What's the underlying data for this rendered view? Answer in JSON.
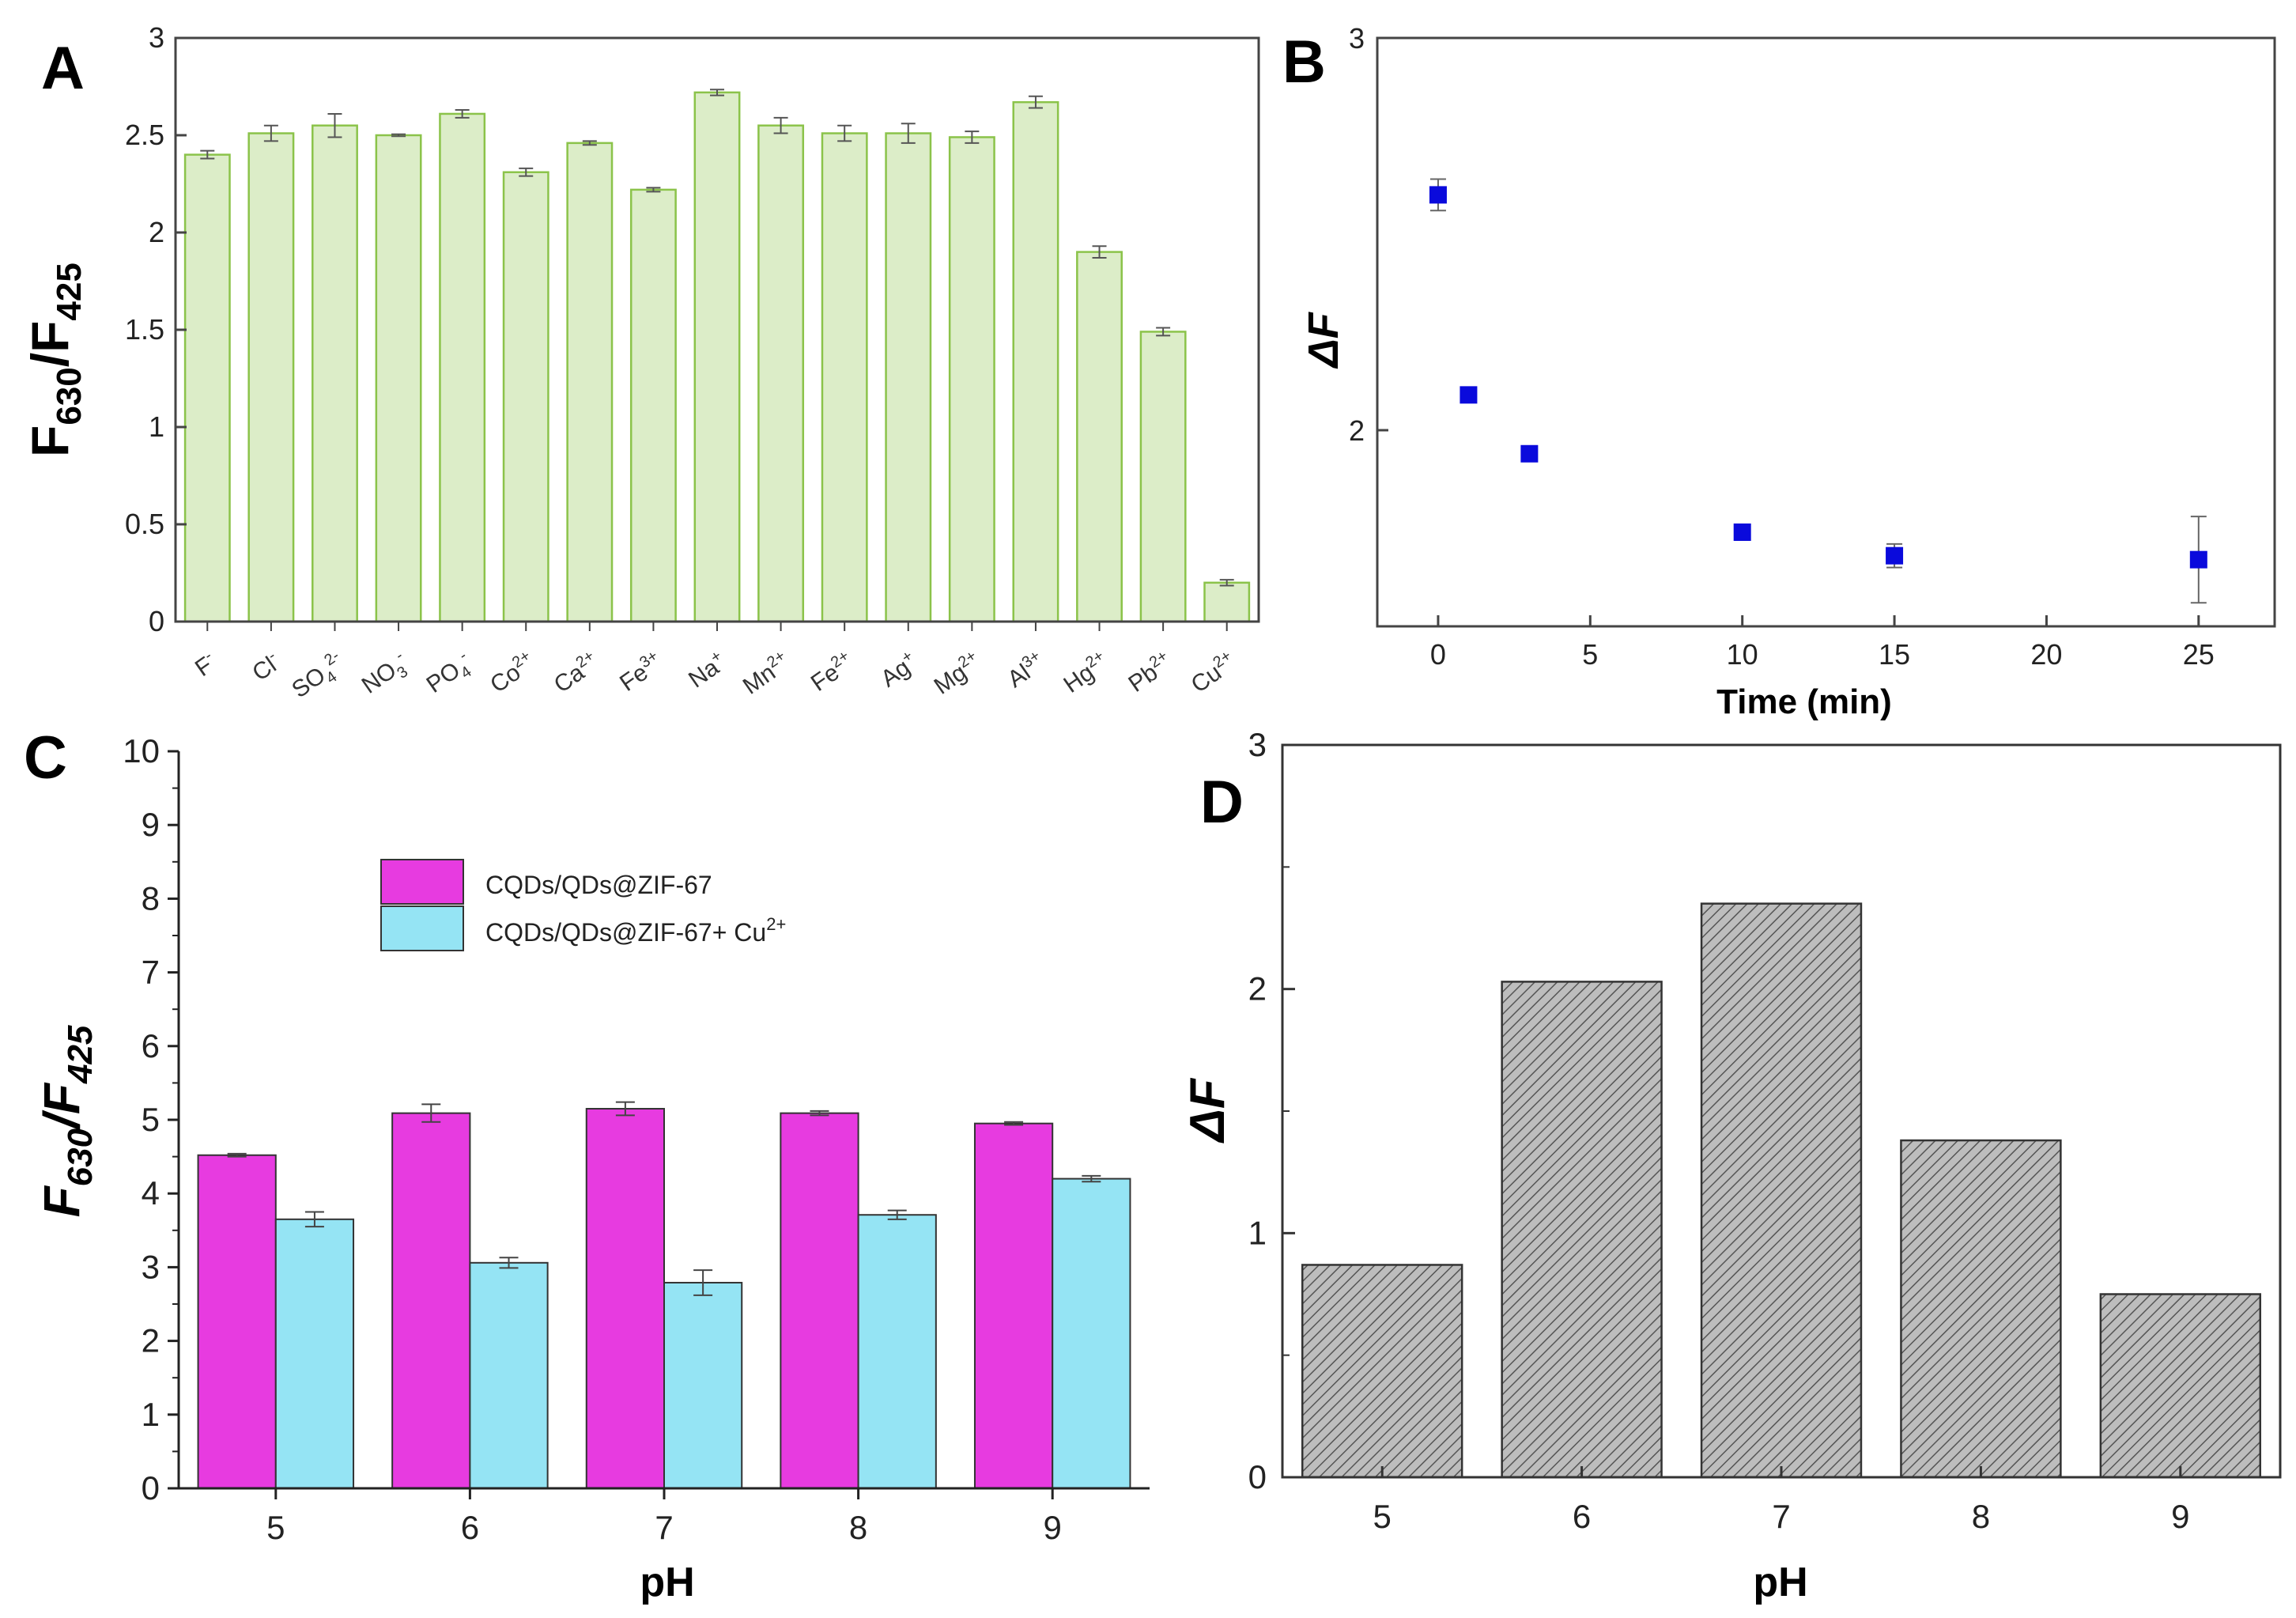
{
  "chart_data": [
    {
      "panel": "A",
      "type": "bar",
      "ylabel": "F630/F425",
      "ylim": [
        0,
        3
      ],
      "yticks": [
        "0",
        "0.5",
        "1",
        "1.5",
        "2",
        "2.5",
        "3"
      ],
      "categories": [
        {
          "base": "F",
          "sub": "",
          "sup": "-"
        },
        {
          "base": "Cl",
          "sub": "",
          "sup": "-"
        },
        {
          "base": "SO",
          "sub": "4",
          "sup": "2-"
        },
        {
          "base": "NO",
          "sub": "3",
          "sup": "-"
        },
        {
          "base": "PO",
          "sub": "4",
          "sup": "-"
        },
        {
          "base": "Co",
          "sub": "",
          "sup": "2+"
        },
        {
          "base": "Ca",
          "sub": "",
          "sup": "2+"
        },
        {
          "base": "Fe",
          "sub": "",
          "sup": "3+"
        },
        {
          "base": "Na",
          "sub": "",
          "sup": "+"
        },
        {
          "base": "Mn",
          "sub": "",
          "sup": "2+"
        },
        {
          "base": "Fe",
          "sub": "",
          "sup": "2+"
        },
        {
          "base": "Ag",
          "sub": "",
          "sup": "+"
        },
        {
          "base": "Mg",
          "sub": "",
          "sup": "2+"
        },
        {
          "base": "Al",
          "sub": "",
          "sup": "3+"
        },
        {
          "base": "Hg",
          "sub": "",
          "sup": "2+"
        },
        {
          "base": "Pb",
          "sub": "",
          "sup": "2+"
        },
        {
          "base": "Cu",
          "sub": "",
          "sup": "2+"
        }
      ],
      "values": [
        2.4,
        2.51,
        2.55,
        2.5,
        2.61,
        2.31,
        2.46,
        2.22,
        2.72,
        2.55,
        2.51,
        2.51,
        2.49,
        2.67,
        1.9,
        1.49,
        0.2
      ],
      "errors": [
        0.02,
        0.04,
        0.06,
        0.005,
        0.02,
        0.02,
        0.01,
        0.01,
        0.015,
        0.04,
        0.04,
        0.05,
        0.03,
        0.03,
        0.03,
        0.02,
        0.015
      ],
      "bar_color": "#dcedc8",
      "edge_color": "#8bc34a"
    },
    {
      "panel": "B",
      "type": "scatter",
      "xlabel": "Time (min)",
      "ylabel": "ΔF",
      "xlim": [
        -2,
        27.5
      ],
      "ylim": [
        1.5,
        3
      ],
      "xticks": [
        "0",
        "5",
        "10",
        "15",
        "20",
        "25"
      ],
      "yticks": [
        "2",
        "3"
      ],
      "x": [
        0,
        1,
        3,
        10,
        15,
        25
      ],
      "y": [
        2.6,
        2.09,
        1.94,
        1.74,
        1.68,
        1.67
      ],
      "errors": [
        0.04,
        0.01,
        0.01,
        0.02,
        0.03,
        0.11
      ],
      "marker_color": "#0a0adc"
    },
    {
      "panel": "C",
      "type": "bar",
      "xlabel": "pH",
      "ylabel": "F630/F425",
      "ylim": [
        0,
        10
      ],
      "yticks": [
        "0",
        "1",
        "2",
        "3",
        "4",
        "5",
        "6",
        "7",
        "8",
        "9",
        "10"
      ],
      "categories": [
        "5",
        "6",
        "7",
        "8",
        "9"
      ],
      "series": [
        {
          "name": "CQDs/QDs@ZIF-67",
          "values": [
            4.52,
            5.09,
            5.15,
            5.09,
            4.95
          ],
          "errors": [
            0.02,
            0.12,
            0.09,
            0.03,
            0.02
          ],
          "color": "#e73be0"
        },
        {
          "name": "CQDs/QDs@ZIF-67+ Cu",
          "name_sup": "2+",
          "values": [
            3.65,
            3.06,
            2.79,
            3.71,
            4.2
          ],
          "errors": [
            0.1,
            0.07,
            0.17,
            0.06,
            0.04
          ],
          "color": "#95e4f4"
        }
      ]
    },
    {
      "panel": "D",
      "type": "bar",
      "xlabel": "pH",
      "ylabel": "ΔF",
      "ylim": [
        0,
        3
      ],
      "yticks": [
        "0",
        "1",
        "2",
        "3"
      ],
      "categories": [
        "5",
        "6",
        "7",
        "8",
        "9"
      ],
      "values": [
        0.87,
        2.03,
        2.35,
        1.38,
        0.75
      ],
      "bar_color": "#bdbdbd",
      "hatch_color": "#555555"
    }
  ],
  "labels": {
    "panelA": "A",
    "panelB": "B",
    "panelC": "C",
    "panelD": "D",
    "ratio_main": "F",
    "ratio_sub1": "630",
    "ratio_slash": "/F",
    "ratio_sub2": "425",
    "delta_f": "ΔF",
    "time_axis": "Time (min)",
    "ph": "pH"
  }
}
